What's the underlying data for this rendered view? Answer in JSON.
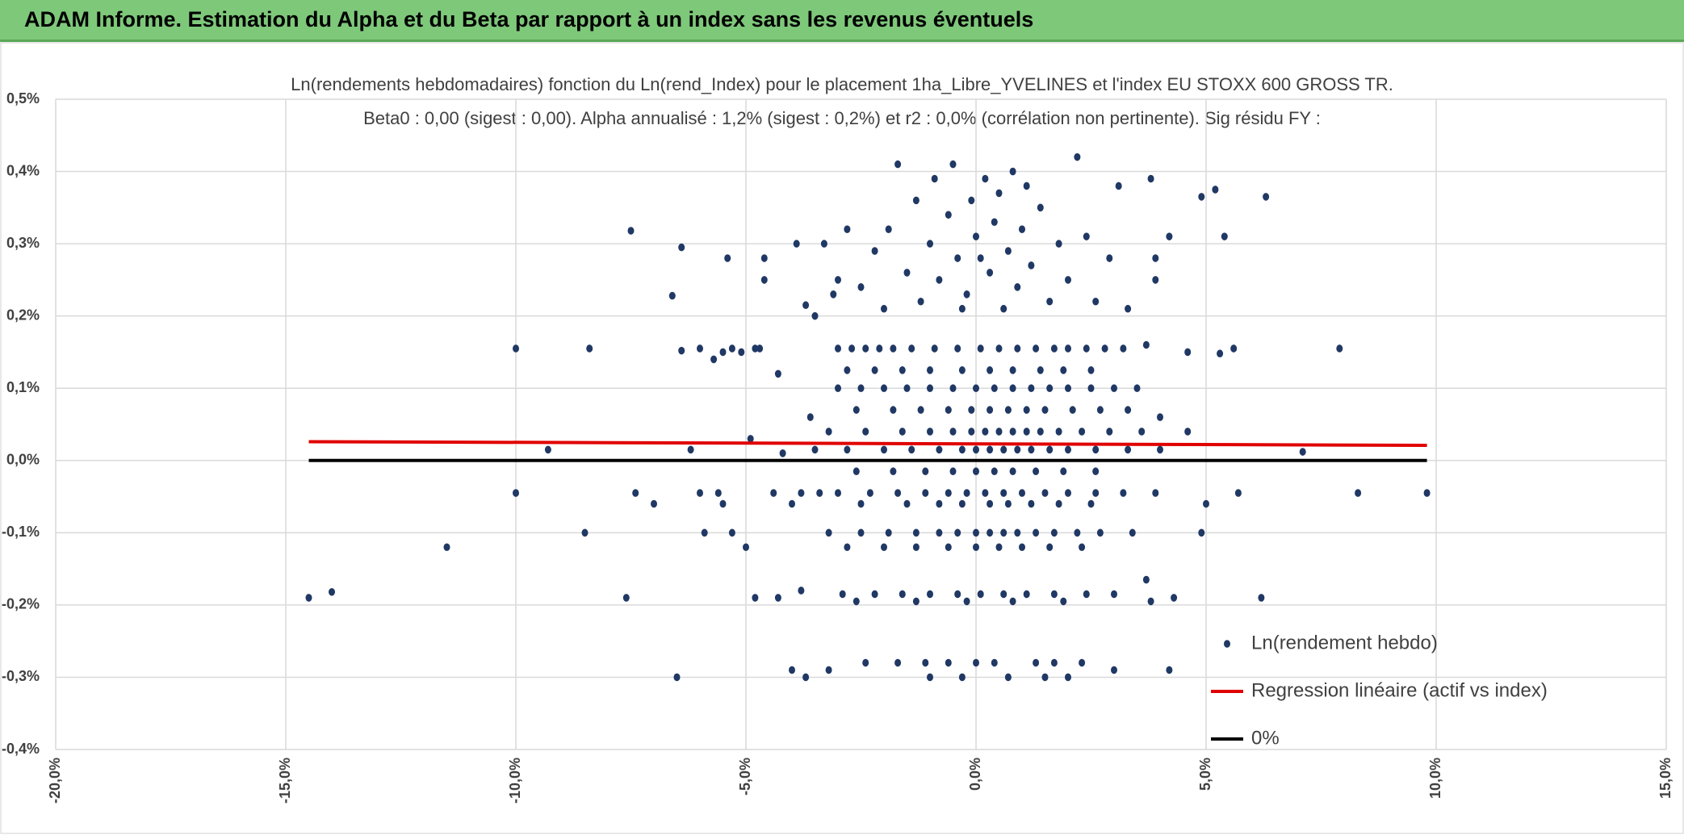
{
  "header": {
    "title": "ADAM Informe. Estimation du Alpha et du Beta par rapport à un index sans les revenus éventuels"
  },
  "chart_data": {
    "type": "scatter",
    "title": "Ln(rendements hebdomadaires) fonction du Ln(rend_Index) pour le placement 1ha_Libre_YVELINES et l'index EU STOXX 600 GROSS TR.",
    "subtitle": "Beta0 : 0,00 (sigest : 0,00). Alpha annualisé : 1,2% (sigest : 0,2%) et r2 : 0,0% (corrélation non pertinente). Sig résidu FY :",
    "xlim": [
      -20,
      15
    ],
    "xticks": [
      {
        "value": -20,
        "label": "-20,0%"
      },
      {
        "value": -15,
        "label": "-15,0%"
      },
      {
        "value": -10,
        "label": "-10,0%"
      },
      {
        "value": -5,
        "label": "-5,0%"
      },
      {
        "value": 0,
        "label": "0,0%"
      },
      {
        "value": 5,
        "label": "5,0%"
      },
      {
        "value": 10,
        "label": "10,0%"
      },
      {
        "value": 15,
        "label": "15,0%"
      }
    ],
    "ylim": [
      -0.4,
      0.5
    ],
    "yticks": [
      {
        "value": -0.4,
        "label": "-0,4%"
      },
      {
        "value": -0.3,
        "label": "-0,3%"
      },
      {
        "value": -0.2,
        "label": "-0,2%"
      },
      {
        "value": -0.1,
        "label": "-0,1%"
      },
      {
        "value": 0,
        "label": "0,0%"
      },
      {
        "value": 0.1,
        "label": "0,1%"
      },
      {
        "value": 0.2,
        "label": "0,2%"
      },
      {
        "value": 0.3,
        "label": "0,3%"
      },
      {
        "value": 0.4,
        "label": "0,4%"
      },
      {
        "value": 0.5,
        "label": "0,5%"
      }
    ],
    "grid": true,
    "legend": "bottom-right",
    "series": [
      {
        "name": "Ln(rendement hebdo)",
        "color": "#203864",
        "mark": "scatter",
        "x": [
          -14.5,
          -14,
          -11.5,
          -10,
          -10,
          -9.3,
          -8.4,
          -8.5,
          -7.5,
          -7.6,
          -7.4,
          -7,
          -6.6,
          -6.4,
          -6.4,
          -6.5,
          -6.2,
          -6,
          -6,
          -5.9,
          -5.7,
          -5.6,
          -5.5,
          -5.5,
          -5.4,
          -5.3,
          -5.3,
          -5.1,
          -5,
          -4.9,
          -4.8,
          -4.8,
          -4.7,
          -4.6,
          -4.6,
          -4.4,
          -4.3,
          -4.3,
          -4.2,
          -4,
          -4,
          -3.9,
          -3.8,
          -3.8,
          -3.7,
          -3.7,
          -3.6,
          -3.5,
          -3.4,
          -3.3,
          -3.2,
          -3.1,
          6.2,
          7.1,
          7.9,
          8.3,
          9.8,
          5.7,
          5.6,
          5.3,
          5.4,
          5.2,
          4.9,
          6.3,
          4.9,
          5,
          4.6,
          4.6,
          4.2,
          4.3,
          4.2,
          3.8,
          3.9,
          3.9,
          3.7,
          3.7,
          3.8,
          4,
          3.1,
          3.3,
          3,
          -3,
          -2.7,
          -2.4,
          -2.1,
          -1.8,
          -1.4,
          -0.9,
          -0.4,
          0.1,
          0.5,
          0.9,
          1.3,
          1.7,
          2.0,
          2.4,
          2.8,
          3.2,
          -2.8,
          -2.2,
          -1.6,
          -1.0,
          -0.3,
          0.3,
          0.8,
          1.4,
          1.9,
          2.5,
          -3,
          -2.5,
          -2,
          -1.5,
          -1,
          -0.5,
          0,
          0.4,
          0.8,
          1.2,
          1.6,
          2,
          2.5,
          3,
          3.5,
          -2.6,
          -1.8,
          -1.2,
          -0.6,
          -0.1,
          0.3,
          0.7,
          1.1,
          1.5,
          2.1,
          2.7,
          3.3,
          -3.2,
          -2.4,
          -1.6,
          -1,
          -0.5,
          -0.1,
          0.2,
          0.5,
          0.8,
          1.1,
          1.4,
          1.8,
          2.3,
          2.9,
          3.6,
          -3.5,
          -2.8,
          -2,
          -1.4,
          -0.8,
          -0.3,
          0,
          0.3,
          0.6,
          0.9,
          1.2,
          1.6,
          2.0,
          2.6,
          3.3,
          4,
          -2.6,
          -1.8,
          -1.1,
          -0.5,
          0,
          0.4,
          0.8,
          1.3,
          1.9,
          2.6,
          -3,
          -2.3,
          -1.7,
          -1.1,
          -0.6,
          -0.2,
          0.2,
          0.6,
          1,
          1.5,
          2,
          2.6,
          3.2,
          3.9,
          -2.5,
          -1.5,
          -0.8,
          -0.3,
          0.3,
          0.7,
          1.2,
          1.8,
          2.5,
          -3.2,
          -2.5,
          -1.9,
          -1.3,
          -0.8,
          -0.4,
          0,
          0.3,
          0.6,
          0.9,
          1.3,
          1.7,
          2.2,
          2.7,
          3.4,
          -2.8,
          -2,
          -1.3,
          -0.6,
          0,
          0.5,
          1,
          1.6,
          2.3,
          -2.9,
          -2.2,
          -1.6,
          -1,
          -0.4,
          0.1,
          0.6,
          1.1,
          1.7,
          2.4,
          3,
          -2.6,
          -1.3,
          -0.2,
          0.8,
          1.9,
          -2.4,
          -1.7,
          -1.1,
          -0.6,
          0,
          0.4,
          1.3,
          1.7,
          2.3,
          -1,
          -0.3,
          0.7,
          1.5,
          2,
          -2.8,
          -2.5,
          -2.2,
          -1.9,
          -1.7,
          -1.5,
          -1.3,
          -1.2,
          -1,
          -0.9,
          -0.8,
          -0.6,
          -0.5,
          -0.4,
          -0.2,
          -0.1,
          0,
          0.2,
          0.3,
          0.4,
          0.5,
          0.6,
          0.7,
          0.8,
          0.9,
          1,
          1.2,
          1.4,
          1.6,
          1.8,
          2,
          2.2,
          2.4,
          2.6,
          2.9,
          -2,
          -3,
          -0.3,
          0.1,
          1.1
        ],
        "values": [
          -0.19,
          -0.182,
          -0.12,
          0.155,
          -0.045,
          0.015,
          0.155,
          -0.1,
          0.318,
          -0.19,
          -0.045,
          -0.06,
          0.228,
          0.295,
          0.152,
          -0.3,
          0.015,
          0.155,
          -0.045,
          -0.1,
          0.14,
          -0.045,
          -0.06,
          0.15,
          0.28,
          0.155,
          -0.1,
          0.15,
          -0.12,
          0.03,
          0.155,
          -0.19,
          0.155,
          0.28,
          0.25,
          -0.045,
          -0.19,
          0.12,
          0.01,
          -0.06,
          -0.29,
          0.3,
          -0.045,
          -0.18,
          -0.3,
          0.215,
          0.06,
          0.2,
          -0.045,
          0.3,
          -0.29,
          0.23,
          -0.19,
          0.012,
          0.155,
          -0.045,
          -0.045,
          -0.045,
          0.155,
          0.148,
          0.31,
          0.375,
          0.365,
          0.365,
          -0.1,
          -0.06,
          0.04,
          0.15,
          0.31,
          -0.19,
          -0.29,
          0.39,
          0.28,
          0.25,
          0.16,
          -0.165,
          -0.195,
          0.06,
          0.38,
          0.21,
          -0.29,
          0.155,
          0.155,
          0.155,
          0.155,
          0.155,
          0.155,
          0.155,
          0.155,
          0.155,
          0.155,
          0.155,
          0.155,
          0.155,
          0.155,
          0.155,
          0.155,
          0.155,
          0.125,
          0.125,
          0.125,
          0.125,
          0.125,
          0.125,
          0.125,
          0.125,
          0.125,
          0.125,
          0.1,
          0.1,
          0.1,
          0.1,
          0.1,
          0.1,
          0.1,
          0.1,
          0.1,
          0.1,
          0.1,
          0.1,
          0.1,
          0.1,
          0.1,
          0.07,
          0.07,
          0.07,
          0.07,
          0.07,
          0.07,
          0.07,
          0.07,
          0.07,
          0.07,
          0.07,
          0.07,
          0.04,
          0.04,
          0.04,
          0.04,
          0.04,
          0.04,
          0.04,
          0.04,
          0.04,
          0.04,
          0.04,
          0.04,
          0.04,
          0.04,
          0.04,
          0.015,
          0.015,
          0.015,
          0.015,
          0.015,
          0.015,
          0.015,
          0.015,
          0.015,
          0.015,
          0.015,
          0.015,
          0.015,
          0.015,
          0.015,
          0.015,
          -0.015,
          -0.015,
          -0.015,
          -0.015,
          -0.015,
          -0.015,
          -0.015,
          -0.015,
          -0.015,
          -0.015,
          -0.045,
          -0.045,
          -0.045,
          -0.045,
          -0.045,
          -0.045,
          -0.045,
          -0.045,
          -0.045,
          -0.045,
          -0.045,
          -0.045,
          -0.045,
          -0.045,
          -0.06,
          -0.06,
          -0.06,
          -0.06,
          -0.06,
          -0.06,
          -0.06,
          -0.06,
          -0.06,
          -0.1,
          -0.1,
          -0.1,
          -0.1,
          -0.1,
          -0.1,
          -0.1,
          -0.1,
          -0.1,
          -0.1,
          -0.1,
          -0.1,
          -0.1,
          -0.1,
          -0.1,
          -0.12,
          -0.12,
          -0.12,
          -0.12,
          -0.12,
          -0.12,
          -0.12,
          -0.12,
          -0.12,
          -0.185,
          -0.185,
          -0.185,
          -0.185,
          -0.185,
          -0.185,
          -0.185,
          -0.185,
          -0.185,
          -0.185,
          -0.185,
          -0.195,
          -0.195,
          -0.195,
          -0.195,
          -0.195,
          -0.28,
          -0.28,
          -0.28,
          -0.28,
          -0.28,
          -0.28,
          -0.28,
          -0.28,
          -0.28,
          -0.3,
          -0.3,
          -0.3,
          -0.3,
          -0.3,
          0.32,
          0.24,
          0.29,
          0.32,
          0.41,
          0.26,
          0.36,
          0.22,
          0.3,
          0.39,
          0.25,
          0.34,
          0.41,
          0.28,
          0.23,
          0.36,
          0.31,
          0.39,
          0.26,
          0.33,
          0.37,
          0.21,
          0.29,
          0.4,
          0.24,
          0.32,
          0.27,
          0.35,
          0.22,
          0.3,
          0.25,
          0.42,
          0.31,
          0.22,
          0.28,
          0.21,
          0.25,
          0.21,
          0.28,
          0.38
        ]
      },
      {
        "name": "Regression linéaire (actif vs index)",
        "color": "#e00000",
        "mark": "line",
        "x": [
          -14.5,
          9.8
        ],
        "values": [
          0.026,
          0.021
        ]
      },
      {
        "name": "0%",
        "color": "#000000",
        "mark": "line",
        "x": [
          -14.5,
          9.8
        ],
        "values": [
          0,
          0
        ]
      }
    ]
  }
}
